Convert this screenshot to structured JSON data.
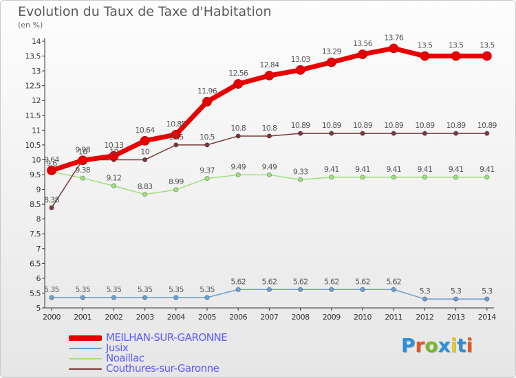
{
  "title": "Evolution du Taux de Taxe d'Habitation",
  "subtitle": "(en %)",
  "logo": {
    "text": "Proxiti",
    "colors": [
      "#2d8fd8",
      "#e8541c",
      "#78b828",
      "#2d8fd8",
      "#e8c81c",
      "#2d8fd8",
      "#e8541c"
    ]
  },
  "chart_data": {
    "type": "line",
    "x": [
      "2000",
      "2001",
      "2002",
      "2003",
      "2004",
      "2005",
      "2006",
      "2007",
      "2008",
      "2009",
      "2010",
      "2011",
      "2012",
      "2013",
      "2014"
    ],
    "ylim": [
      5,
      14
    ],
    "y_ticks": [
      "5",
      "5.5",
      "6",
      "6.5",
      "7",
      "7.5",
      "8",
      "8.5",
      "9",
      "9.5",
      "10",
      "10.5",
      "11",
      "11.5",
      "12",
      "12.5",
      "13",
      "13.5",
      "14"
    ],
    "grid": false,
    "legend_position": "bottom-left",
    "series": [
      {
        "name": "MEILHAN-SUR-GARONNE",
        "color": "#e80000",
        "width": 7,
        "marker": 6.5,
        "values": [
          9.64,
          9.98,
          10.13,
          10.64,
          10.85,
          11.96,
          12.56,
          12.84,
          13.03,
          13.29,
          13.56,
          13.76,
          13.5,
          13.5,
          13.5
        ],
        "labels": [
          "9.64",
          "9.98",
          "10.13",
          "10.64",
          "10.85",
          "11.96",
          "12.56",
          "12.84",
          "13.03",
          "13.29",
          "13.56",
          "13.76",
          "13.5",
          "13.5",
          "13.5"
        ]
      },
      {
        "name": "Jusix",
        "color": "#6a9fd0",
        "width": 1.5,
        "marker": 3.2,
        "values": [
          5.35,
          5.35,
          5.35,
          5.35,
          5.35,
          5.35,
          5.62,
          5.62,
          5.62,
          5.62,
          5.62,
          5.62,
          5.3,
          5.3,
          5.3
        ],
        "labels": [
          "5.35",
          "5.35",
          "5.35",
          "5.35",
          "5.35",
          "5.35",
          "5.62",
          "5.62",
          "5.62",
          "5.62",
          "5.62",
          "5.62",
          "5.3",
          "5.3",
          "5.3"
        ]
      },
      {
        "name": "Noaillac",
        "color": "#9ee07a",
        "width": 1.5,
        "marker": 3.2,
        "values": [
          9.6,
          9.38,
          9.12,
          8.83,
          8.99,
          9.37,
          9.49,
          9.49,
          9.33,
          9.41,
          9.41,
          9.41,
          9.41,
          9.41,
          9.41
        ],
        "labels": [
          "9.6",
          "9.38",
          "9.12",
          "8.83",
          "8.99",
          "9.37",
          "9.49",
          "9.49",
          "9.33",
          "9.41",
          "9.41",
          "9.41",
          "9.41",
          "9.41",
          "9.41"
        ]
      },
      {
        "name": "Couthures-sur-Garonne",
        "color": "#7a3a3a",
        "width": 1.5,
        "marker": 3.2,
        "values": [
          8.38,
          10.0,
          10.0,
          10.0,
          10.5,
          10.5,
          10.8,
          10.8,
          10.89,
          10.89,
          10.89,
          10.89,
          10.89,
          10.89,
          10.89
        ],
        "labels": [
          "8.38",
          "10",
          "10",
          "10",
          "10.5",
          "10.5",
          "10.8",
          "10.8",
          "10.89",
          "10.89",
          "10.89",
          "10.89",
          "10.89",
          "10.89",
          "10.89"
        ]
      }
    ]
  }
}
